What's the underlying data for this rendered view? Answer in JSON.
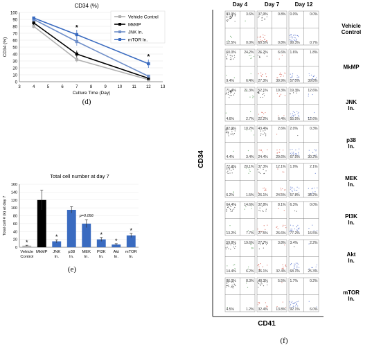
{
  "chart_data": [
    {
      "type": "line",
      "title": "CD34 (%)",
      "xlabel": "Culture Time (Day)",
      "ylabel": "CD34 (%)",
      "panel_label": "(d)",
      "xlim": [
        3,
        13
      ],
      "ylim": [
        0,
        100
      ],
      "x_ticks": [
        3,
        4,
        5,
        6,
        7,
        8,
        9,
        10,
        11,
        12,
        13
      ],
      "y_ticks": [
        0,
        10,
        20,
        30,
        40,
        50,
        60,
        70,
        80,
        90,
        100
      ],
      "legend_position": "top-right",
      "series": [
        {
          "name": "Vehicle Control",
          "color": "#b0b0b0",
          "x": [
            4,
            7,
            12
          ],
          "y": [
            80,
            32,
            3
          ],
          "err": [
            3,
            4,
            1
          ]
        },
        {
          "name": "MkMP",
          "color": "#000000",
          "x": [
            4,
            7,
            12
          ],
          "y": [
            85,
            40,
            5
          ],
          "err": [
            3,
            5,
            2
          ]
        },
        {
          "name": "JNK In.",
          "color": "#6f8fc9",
          "x": [
            4,
            7,
            12
          ],
          "y": [
            90,
            58,
            8
          ],
          "err": [
            3,
            6,
            2
          ]
        },
        {
          "name": "mTOR In.",
          "color": "#3a6bc0",
          "x": [
            4,
            7,
            12
          ],
          "y": [
            92,
            68,
            26
          ],
          "err": [
            2,
            7,
            6
          ]
        }
      ],
      "annotations": [
        {
          "x": 7,
          "y": 78,
          "text": "*"
        },
        {
          "x": 12,
          "y": 36,
          "text": "*"
        }
      ]
    },
    {
      "type": "bar",
      "title": "Total cell number at day 7",
      "ylabel": "Total cell # (k) at day 7",
      "panel_label": "(e)",
      "ylim": [
        0,
        160
      ],
      "y_ticks": [
        0,
        20,
        40,
        60,
        80,
        100,
        120,
        140,
        160
      ],
      "categories": [
        "Vehicle Control",
        "MkMP",
        "JNK In.",
        "p38 In.",
        "MEK In.",
        "PI3K In.",
        "Akt In.",
        "mTOR In."
      ],
      "values": [
        4,
        120,
        15,
        95,
        60,
        20,
        7,
        30
      ],
      "errors": [
        1,
        25,
        4,
        8,
        10,
        5,
        2,
        5
      ],
      "colors": [
        "#b0b0b0",
        "#000000",
        "#3a6bc0",
        "#3a6bc0",
        "#3a6bc0",
        "#3a6bc0",
        "#3a6bc0",
        "#3a6bc0"
      ],
      "star_indices": [
        0,
        2,
        5,
        6,
        7
      ],
      "annotations": [
        {
          "category": "MEK In.",
          "text": "p=0.056"
        }
      ]
    },
    {
      "type": "scatter",
      "panel_label": "(f)",
      "xlabel": "CD41",
      "ylabel": "CD34",
      "columns": [
        "Day 4",
        "Day 7",
        "Day 12"
      ],
      "rows": [
        {
          "label": "Vehicle Control",
          "quadrants": [
            [
              "83.9%",
              "3.6%",
              "12.5%",
              "0.0%"
            ],
            [
              "37.9%",
              "0.8%",
              "60.5%",
              "0.8%"
            ],
            [
              "0.0%",
              "0.0%",
              "99.3%",
              "0.7%"
            ]
          ]
        },
        {
          "label": "MkMP",
          "quadrants": [
            [
              "60.0%",
              "24.2%",
              "9.4%",
              "6.4%"
            ],
            [
              "26.2%",
              "6.6%",
              "27.3%",
              "39.9%"
            ],
            [
              "1.6%",
              "1.8%",
              "57.0%",
              "39.8%"
            ]
          ]
        },
        {
          "label": "JNK In.",
          "quadrants": [
            [
              "71.4%",
              "21.3%",
              "4.6%",
              "2.7%"
            ],
            [
              "52.1%",
              "19.3%",
              "22.2%",
              "6.4%"
            ],
            [
              "19.3%",
              "12.6%",
              "55.5%",
              "12.6%"
            ]
          ]
        },
        {
          "label": "p38 In.",
          "quadrants": [
            [
              "82.0%",
              "10.2%",
              "4.4%",
              "3.4%"
            ],
            [
              "43.4%",
              "2.6%",
              "24.4%",
              "29.6%"
            ],
            [
              "2.0%",
              "0.3%",
              "67.5%",
              "30.2%"
            ]
          ]
        },
        {
          "label": "MEK In.",
          "quadrants": [
            [
              "72.2%",
              "20.1%",
              "6.2%",
              "1.5%"
            ],
            [
              "37.3%",
              "12.1%",
              "26.1%",
              "24.5%"
            ],
            [
              "1.9%",
              "2.1%",
              "57.8%",
              "38.2%"
            ]
          ]
        },
        {
          "label": "PI3K In.",
          "quadrants": [
            [
              "64.4%",
              "14.6%",
              "13.2%",
              "7.7%"
            ],
            [
              "37.8%",
              "8.1%",
              "27.5%",
              "26.6%"
            ],
            [
              "6.3%",
              "0.0%",
              "77.2%",
              "16.5%"
            ]
          ]
        },
        {
          "label": "Akt In.",
          "quadrants": [
            [
              "59.8%",
              "19.6%",
              "14.4%",
              "6.2%"
            ],
            [
              "27.7%",
              "3.8%",
              "36.1%",
              "32.4%"
            ],
            [
              "3.4%",
              "2.2%",
              "68.1%",
              "25.3%"
            ]
          ]
        },
        {
          "label": "mTOR In.",
          "quadrants": [
            [
              "86.0%",
              "8.3%",
              "4.5%",
              "1.2%"
            ],
            [
              "48.3%",
              "5.5%",
              "32.4%",
              "13.8%"
            ],
            [
              "1.7%",
              "0.2%",
              "92.1%",
              "6.0%"
            ]
          ]
        }
      ],
      "dot_colors": {
        "day4": "#3a8c3a",
        "day7": "#d04030",
        "day12": "#4060c8",
        "gate": "#222222"
      }
    }
  ]
}
